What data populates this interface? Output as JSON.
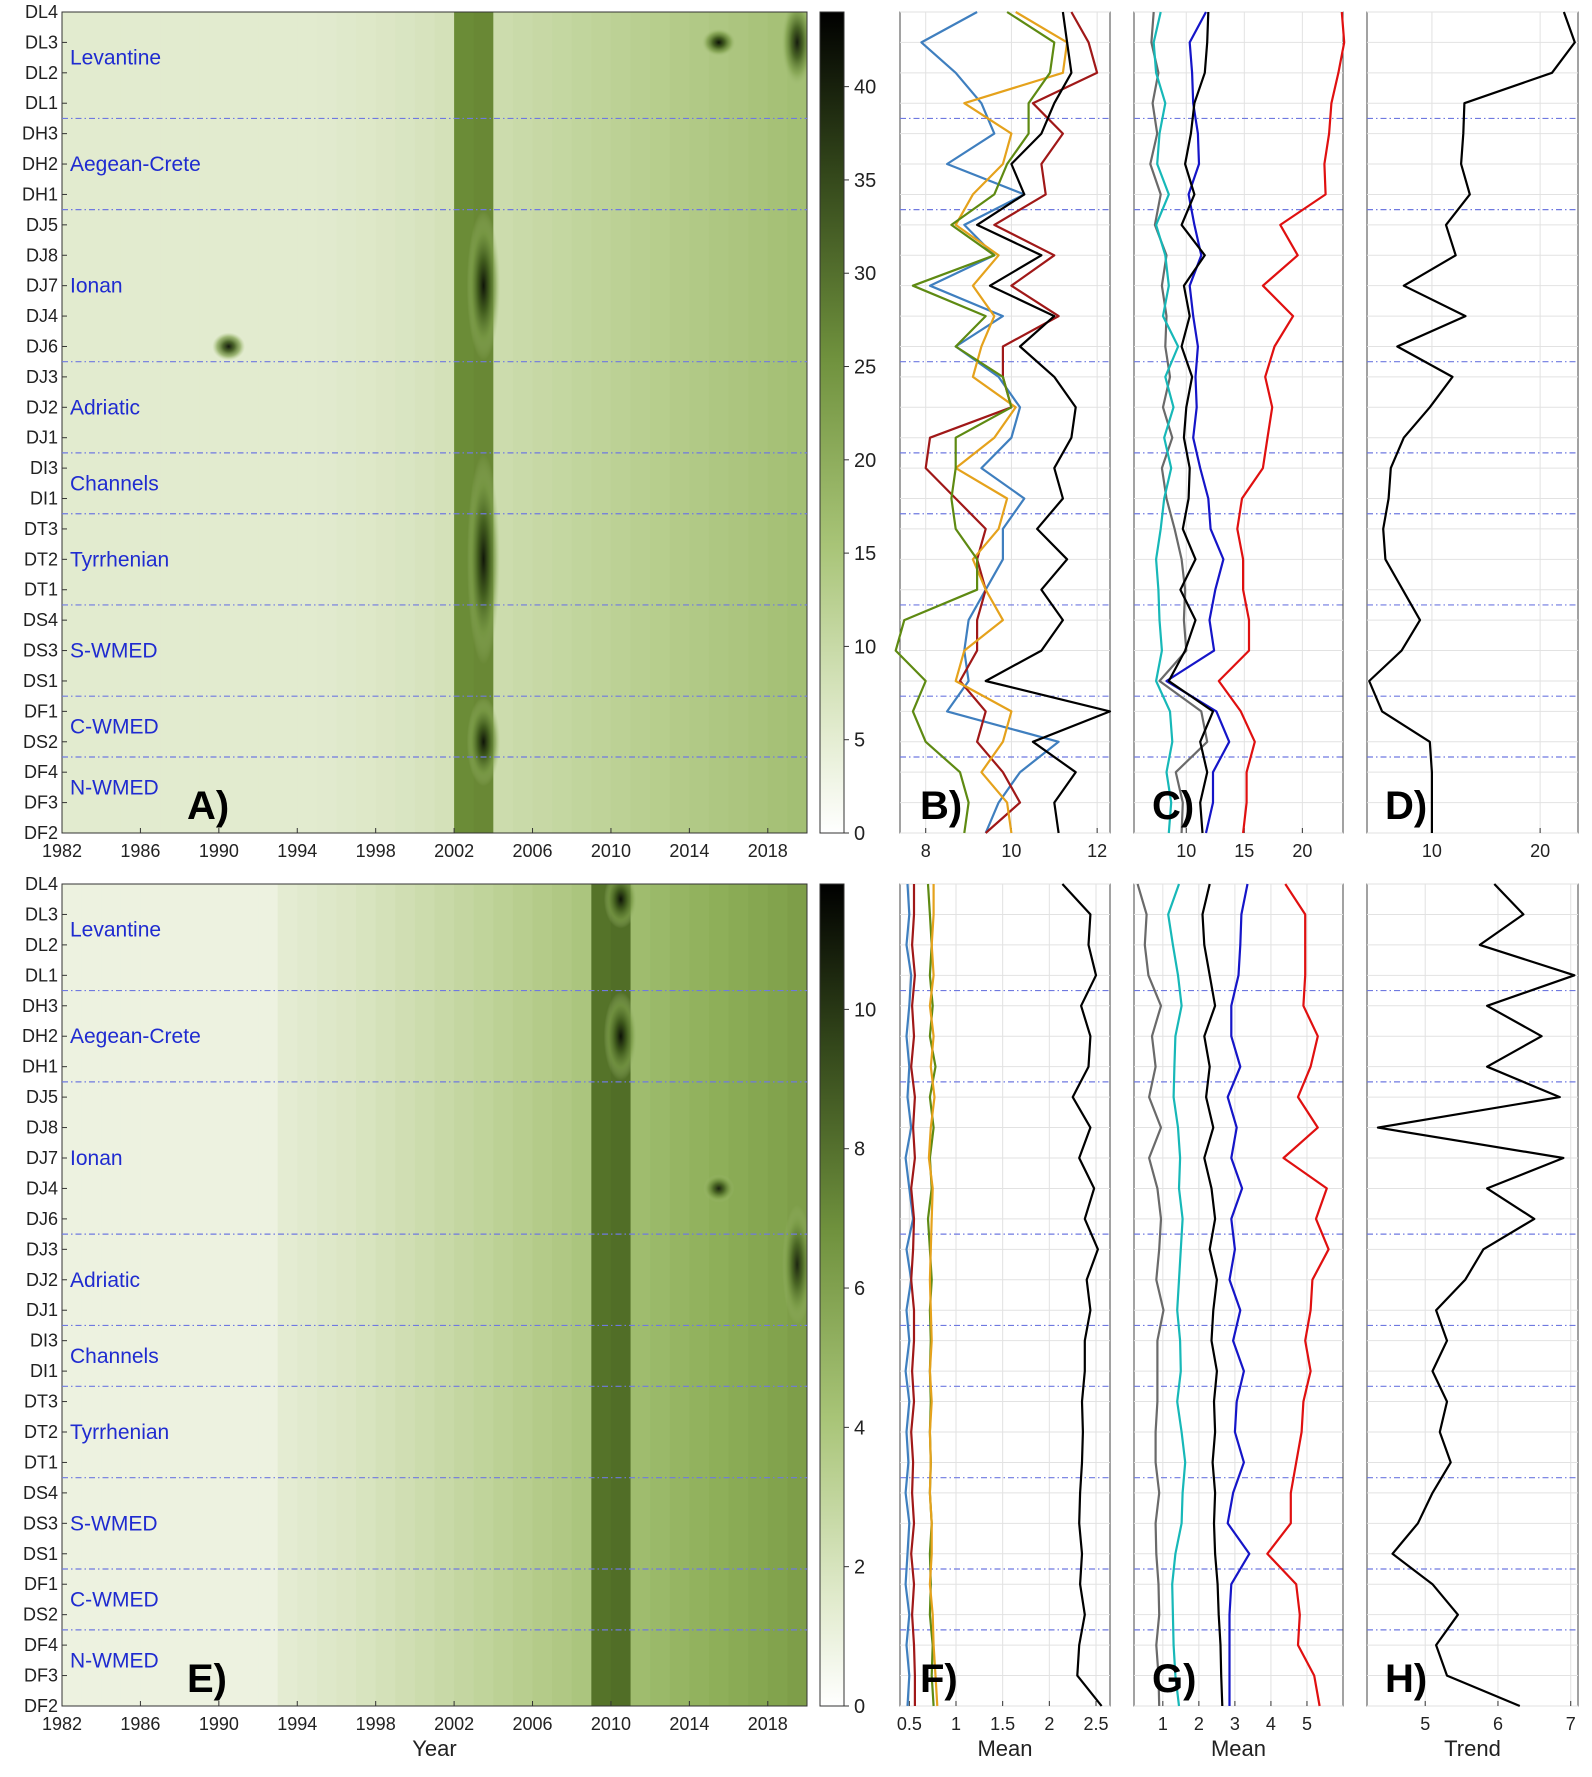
{
  "colors": {
    "region_label": "#1f2bd0",
    "divider": "#6f79e0",
    "contour_line": "#3a4030",
    "light": "#f4f7ec",
    "dark": "#0b0d08",
    "blue_line": "#3f7fbf",
    "red_line": "#a01818",
    "orange_line": "#e5a21c",
    "green_line": "#5e8a12",
    "black_line": "#000000",
    "gray_line": "#6a6a6a",
    "cyan_line": "#17b8b8",
    "navy_line": "#1515c8",
    "bright_red_line": "#e01010"
  },
  "stations_top_to_bottom": [
    "DL4",
    "DL3",
    "DL2",
    "DL1",
    "DH3",
    "DH2",
    "DH1",
    "DJ5",
    "DJ8",
    "DJ7",
    "DJ4",
    "DJ6",
    "DJ3",
    "DJ2",
    "DJ1",
    "DI3",
    "DI1",
    "DT3",
    "DT2",
    "DT1",
    "DS4",
    "DS3",
    "DS1",
    "DF1",
    "DS2",
    "DF4",
    "DF3",
    "DF2"
  ],
  "regions": [
    {
      "name": "Levantine",
      "row": 1.5
    },
    {
      "name": "Aegean-Crete",
      "row": 5
    },
    {
      "name": "Ionan",
      "row": 9
    },
    {
      "name": "Adriatic",
      "row": 13
    },
    {
      "name": "Channels",
      "row": 15.5
    },
    {
      "name": "Tyrrhenian",
      "row": 18
    },
    {
      "name": "S-WMED",
      "row": 21
    },
    {
      "name": "C-WMED",
      "row": 23.5
    },
    {
      "name": "N-WMED",
      "row": 25.5
    }
  ],
  "divider_rows": [
    3.5,
    6.5,
    11.5,
    14.5,
    16.5,
    19.5,
    22.5,
    24.5
  ],
  "year_ticks": [
    "1982",
    "1986",
    "1990",
    "1994",
    "1998",
    "2002",
    "2006",
    "2010",
    "2014",
    "2018"
  ],
  "xlabels": {
    "year": "Year",
    "mean": "Mean",
    "trend": "Trend"
  },
  "panel_labels": [
    "A)",
    "B)",
    "C)",
    "D)",
    "E)",
    "F)",
    "G)",
    "H)"
  ],
  "colorbar_top": {
    "ticks": [
      0,
      5,
      10,
      15,
      20,
      25,
      30,
      35,
      40
    ],
    "max": 44
  },
  "colorbar_bottom": {
    "ticks": [
      0,
      2,
      4,
      6,
      8,
      10
    ],
    "max": 11.8
  },
  "chart_data": [
    {
      "panel": "A",
      "type": "heatmap",
      "x_range": [
        1982,
        2020
      ],
      "y_categories": "stations_top_to_bottom",
      "colorbar_range": [
        0,
        44
      ],
      "hotspots": [
        {
          "year": 2003,
          "stations": [
            "DJ5",
            "DJ8",
            "DJ7",
            "DJ4",
            "DJ6"
          ],
          "value": 42
        },
        {
          "year": 2003,
          "stations": [
            "DI3",
            "DI1",
            "DT3",
            "DT2",
            "DT1",
            "DS4",
            "DS3"
          ],
          "value": 40
        },
        {
          "year": 2003,
          "stations": [
            "DF1",
            "DS2",
            "DF4"
          ],
          "value": 42
        },
        {
          "year": 2015,
          "stations": [
            "DL3"
          ],
          "value": 44
        },
        {
          "year": 1990,
          "stations": [
            "DJ6"
          ],
          "value": 40
        },
        {
          "year": 2019,
          "stations": [
            "DL4",
            "DL3",
            "DL2"
          ],
          "value": 38
        }
      ]
    },
    {
      "panel": "B",
      "type": "line",
      "x_ticks": [
        8,
        10,
        12
      ],
      "x_range": [
        7.4,
        12.3
      ],
      "series": [
        {
          "color": "blue_line",
          "values": [
            9.2,
            7.9,
            8.7,
            9.3,
            9.6,
            8.5,
            10.3,
            8.9,
            9.6,
            8.1,
            9.8,
            8.7,
            9.7,
            10.2,
            10.0,
            9.3,
            10.3,
            9.8,
            9.8,
            9.4,
            9.0,
            8.9,
            9.0,
            8.5,
            11.1,
            10.2,
            9.7,
            9.4
          ]
        },
        {
          "color": "red_line",
          "values": [
            11.4,
            11.8,
            12.0,
            10.5,
            11.2,
            10.7,
            10.8,
            9.6,
            11.0,
            10.0,
            11.1,
            9.8,
            9.8,
            10.0,
            8.1,
            8.0,
            8.7,
            9.4,
            9.2,
            9.4,
            9.2,
            9.2,
            8.8,
            9.4,
            9.2,
            9.8,
            10.2,
            9.4
          ]
        },
        {
          "color": "orange_line",
          "values": [
            10.1,
            11.3,
            11.2,
            8.9,
            10.0,
            9.8,
            9.1,
            8.7,
            9.7,
            9.1,
            9.6,
            9.3,
            9.1,
            10.1,
            9.6,
            8.7,
            9.9,
            9.7,
            9.1,
            9.4,
            9.8,
            8.9,
            8.7,
            10.0,
            9.8,
            9.3,
            9.9,
            10.0
          ]
        },
        {
          "color": "green_line",
          "values": [
            9.9,
            11.0,
            10.9,
            10.4,
            10.4,
            9.9,
            9.6,
            8.6,
            9.6,
            7.7,
            9.4,
            8.7,
            9.8,
            10.0,
            8.7,
            8.7,
            8.6,
            8.7,
            9.2,
            9.2,
            7.5,
            7.3,
            8.0,
            7.7,
            8.0,
            8.8,
            9.0,
            8.9
          ]
        },
        {
          "color": "black_line",
          "values": [
            11.2,
            11.3,
            11.4,
            11.0,
            10.7,
            10.0,
            10.3,
            9.2,
            10.7,
            9.5,
            11.0,
            10.2,
            11.0,
            11.5,
            11.4,
            11.0,
            11.2,
            10.6,
            11.3,
            10.7,
            11.2,
            10.7,
            9.4,
            12.3,
            10.5,
            11.5,
            11.0,
            11.1
          ]
        }
      ]
    },
    {
      "panel": "C",
      "type": "line",
      "x_ticks": [
        10,
        15,
        20
      ],
      "x_range": [
        5.5,
        23.5
      ],
      "series": [
        {
          "color": "gray_line",
          "values": [
            7.2,
            7.0,
            7.6,
            7.1,
            7.5,
            6.9,
            7.8,
            7.3,
            8.3,
            7.9,
            8.3,
            8.2,
            8.6,
            8.0,
            8.8,
            7.9,
            8.3,
            9.0,
            9.6,
            9.9,
            9.8,
            10.0,
            7.7,
            11.3,
            11.8,
            9.1,
            9.7,
            9.6
          ]
        },
        {
          "color": "cyan_line",
          "values": [
            7.8,
            7.2,
            7.4,
            8.2,
            7.7,
            7.5,
            8.5,
            7.4,
            8.2,
            8.5,
            8.0,
            9.3,
            8.2,
            8.9,
            8.1,
            8.7,
            8.1,
            7.8,
            7.4,
            7.6,
            7.7,
            7.9,
            7.4,
            8.6,
            8.8,
            8.3,
            8.7,
            8.5
          ]
        },
        {
          "color": "navy_line",
          "values": [
            11.7,
            10.3,
            10.5,
            10.6,
            11.0,
            11.1,
            10.2,
            10.7,
            11.3,
            10.3,
            10.6,
            11.0,
            10.8,
            10.9,
            10.6,
            11.2,
            11.9,
            12.1,
            13.2,
            12.5,
            12.0,
            12.4,
            8.3,
            12.6,
            13.7,
            12.3,
            12.3,
            11.7
          ]
        },
        {
          "color": "black_line",
          "values": [
            11.9,
            11.8,
            11.6,
            10.7,
            10.4,
            9.9,
            10.7,
            9.6,
            11.6,
            9.8,
            10.3,
            9.6,
            10.5,
            10.0,
            9.8,
            10.3,
            10.2,
            9.7,
            10.8,
            9.5,
            10.8,
            9.9,
            8.5,
            12.3,
            11.2,
            11.8,
            11.2,
            11.4
          ]
        },
        {
          "color": "bright_red_line",
          "values": [
            23.4,
            23.6,
            23.1,
            22.5,
            22.3,
            21.9,
            22.0,
            18.1,
            19.6,
            16.6,
            19.2,
            17.6,
            16.8,
            17.4,
            17.0,
            16.6,
            14.8,
            14.4,
            14.9,
            14.9,
            15.4,
            15.4,
            12.8,
            14.7,
            15.9,
            15.2,
            15.2,
            14.9
          ]
        }
      ]
    },
    {
      "panel": "D",
      "type": "line",
      "x_ticks": [
        10,
        20
      ],
      "x_range": [
        4,
        23.5
      ],
      "series": [
        {
          "color": "black_line",
          "values": [
            22.2,
            23.2,
            21.1,
            13.0,
            12.9,
            12.7,
            13.5,
            11.3,
            12.2,
            7.4,
            13.1,
            6.8,
            11.9,
            9.8,
            7.4,
            6.2,
            6.0,
            5.5,
            5.7,
            7.3,
            8.9,
            7.2,
            4.2,
            5.4,
            9.8,
            10.0,
            10.0,
            10.0
          ]
        }
      ]
    },
    {
      "panel": "E",
      "type": "heatmap",
      "x_range": [
        1982,
        2020
      ],
      "y_categories": "stations_top_to_bottom",
      "colorbar_range": [
        0,
        11.8
      ],
      "hotspots": [
        {
          "year": 2010,
          "stations": [
            "DL4",
            "DL3"
          ],
          "value": 11.5
        },
        {
          "year": 2010,
          "stations": [
            "DH3",
            "DH2",
            "DH1"
          ],
          "value": 11.8
        },
        {
          "year": 2015,
          "stations": [
            "DJ4"
          ],
          "value": 9
        },
        {
          "year": 2019,
          "stations": [
            "DJ6",
            "DJ3",
            "DJ2",
            "DJ1"
          ],
          "value": 8
        }
      ]
    },
    {
      "panel": "F",
      "type": "line",
      "x_ticks": [
        0.5,
        1,
        1.5,
        2,
        2.5
      ],
      "x_range": [
        0.4,
        2.65
      ],
      "series": [
        {
          "color": "blue_line",
          "values": [
            0.48,
            0.5,
            0.47,
            0.52,
            0.5,
            0.47,
            0.5,
            0.48,
            0.52,
            0.46,
            0.5,
            0.54,
            0.47,
            0.52,
            0.47,
            0.5,
            0.46,
            0.5,
            0.47,
            0.49,
            0.46,
            0.5,
            0.48,
            0.46,
            0.5,
            0.47,
            0.5,
            0.48
          ]
        },
        {
          "color": "red_line",
          "values": [
            0.55,
            0.55,
            0.53,
            0.56,
            0.53,
            0.55,
            0.52,
            0.56,
            0.54,
            0.56,
            0.52,
            0.55,
            0.54,
            0.52,
            0.55,
            0.55,
            0.53,
            0.55,
            0.52,
            0.54,
            0.53,
            0.55,
            0.52,
            0.55,
            0.53,
            0.55,
            0.56,
            0.56
          ]
        },
        {
          "color": "green_line",
          "values": [
            0.7,
            0.72,
            0.74,
            0.72,
            0.75,
            0.72,
            0.78,
            0.72,
            0.76,
            0.72,
            0.74,
            0.7,
            0.72,
            0.74,
            0.72,
            0.73,
            0.72,
            0.73,
            0.72,
            0.73,
            0.72,
            0.74,
            0.72,
            0.73,
            0.72,
            0.75,
            0.74,
            0.76
          ]
        },
        {
          "color": "orange_line",
          "values": [
            0.76,
            0.76,
            0.74,
            0.76,
            0.72,
            0.76,
            0.73,
            0.77,
            0.73,
            0.71,
            0.75,
            0.74,
            0.73,
            0.72,
            0.73,
            0.74,
            0.72,
            0.74,
            0.72,
            0.73,
            0.72,
            0.74,
            0.74,
            0.72,
            0.75,
            0.76,
            0.78,
            0.8
          ]
        },
        {
          "color": "black_line",
          "values": [
            2.14,
            2.44,
            2.42,
            2.5,
            2.34,
            2.44,
            2.42,
            2.25,
            2.44,
            2.32,
            2.48,
            2.38,
            2.52,
            2.4,
            2.44,
            2.38,
            2.38,
            2.35,
            2.36,
            2.35,
            2.33,
            2.32,
            2.35,
            2.33,
            2.38,
            2.32,
            2.3,
            2.56
          ]
        }
      ]
    },
    {
      "panel": "G",
      "type": "line",
      "x_ticks": [
        1,
        2,
        3,
        4,
        5
      ],
      "x_range": [
        0.2,
        6.0
      ],
      "series": [
        {
          "color": "gray_line",
          "values": [
            0.3,
            0.55,
            0.5,
            0.6,
            0.95,
            0.7,
            0.8,
            0.62,
            0.95,
            0.62,
            0.85,
            0.95,
            0.9,
            0.82,
            1.02,
            0.85,
            0.85,
            0.85,
            0.8,
            0.8,
            0.9,
            0.8,
            0.82,
            0.88,
            0.9,
            0.82,
            0.88,
            0.9
          ]
        },
        {
          "color": "cyan_line",
          "values": [
            1.45,
            1.15,
            1.28,
            1.42,
            1.52,
            1.35,
            1.32,
            1.3,
            1.42,
            1.48,
            1.45,
            1.55,
            1.5,
            1.45,
            1.4,
            1.48,
            1.5,
            1.4,
            1.52,
            1.62,
            1.55,
            1.52,
            1.35,
            1.26,
            1.28,
            1.3,
            1.35,
            1.45
          ]
        },
        {
          "color": "black_line",
          "values": [
            2.3,
            2.1,
            2.15,
            2.3,
            2.45,
            2.15,
            2.3,
            2.2,
            2.4,
            2.15,
            2.35,
            2.45,
            2.3,
            2.5,
            2.4,
            2.35,
            2.5,
            2.42,
            2.45,
            2.38,
            2.45,
            2.42,
            2.45,
            2.52,
            2.55,
            2.6,
            2.62,
            2.65
          ]
        },
        {
          "color": "navy_line",
          "values": [
            3.35,
            3.18,
            3.15,
            3.1,
            2.9,
            2.9,
            3.15,
            2.8,
            3.05,
            2.9,
            3.2,
            2.9,
            3.0,
            2.85,
            3.15,
            2.95,
            3.25,
            3.05,
            3.0,
            3.25,
            2.95,
            2.8,
            3.4,
            2.9,
            2.85,
            2.85,
            2.85,
            2.85
          ]
        },
        {
          "color": "bright_red_line",
          "values": [
            4.4,
            4.95,
            4.95,
            4.95,
            4.9,
            5.3,
            5.1,
            4.75,
            5.3,
            4.35,
            5.55,
            5.25,
            5.6,
            5.15,
            5.1,
            4.95,
            5.1,
            4.9,
            4.85,
            4.7,
            4.55,
            4.55,
            3.9,
            4.7,
            4.8,
            4.75,
            5.2,
            5.35
          ]
        }
      ]
    },
    {
      "panel": "H",
      "type": "line",
      "x_ticks": [
        5,
        6,
        7
      ],
      "x_range": [
        4.2,
        7.1
      ],
      "series": [
        {
          "color": "black_line",
          "values": [
            5.95,
            6.35,
            5.75,
            7.05,
            5.85,
            6.6,
            5.85,
            6.85,
            4.35,
            6.9,
            5.85,
            6.5,
            5.8,
            5.55,
            5.15,
            5.3,
            5.1,
            5.3,
            5.2,
            5.35,
            5.1,
            4.9,
            4.55,
            5.1,
            5.45,
            5.15,
            5.3,
            6.3
          ]
        }
      ]
    }
  ]
}
